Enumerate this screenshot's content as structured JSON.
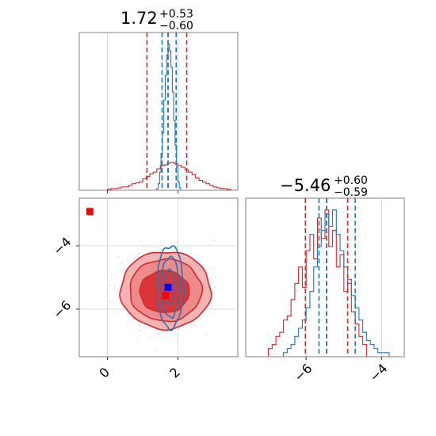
{
  "colors": {
    "red": "#d62728",
    "blue": "#1f77b4",
    "red_fill_light": "#f4b4b4",
    "red_fill_mid": "#ec8a8c",
    "red_fill_dark": "#db3538",
    "marker_blue": "#0000ff",
    "marker_red": "#ff0000"
  },
  "chart_data": [
    {
      "panel": "marginal-param-1",
      "type": "histogram",
      "title": {
        "value": "1.72",
        "upper": "+0.53",
        "lower": "−0.60"
      },
      "xlim": [
        -0.8,
        3.7
      ],
      "x_ticks": [
        0,
        2
      ],
      "quantiles": {
        "red": [
          1.12,
          1.72,
          2.25
        ],
        "blue": [
          1.55,
          1.72,
          1.95
        ]
      },
      "series": [
        {
          "name": "",
          "color": "red",
          "bin_edges": [
            0.0,
            0.1,
            0.2,
            0.3,
            0.4,
            0.5,
            0.6,
            0.7,
            0.8,
            0.9,
            1.0,
            1.1,
            1.2,
            1.3,
            1.4,
            1.5,
            1.6,
            1.7,
            1.8,
            1.9,
            2.0,
            2.1,
            2.2,
            2.3,
            2.4,
            2.5,
            2.6,
            2.7,
            2.8,
            2.9,
            3.0,
            3.1,
            3.2,
            3.3,
            3.4,
            3.5
          ],
          "counts": [
            1,
            2,
            2,
            3,
            4,
            4,
            6,
            8,
            9,
            10,
            14,
            17,
            20,
            22,
            26,
            30,
            31,
            33,
            34,
            32,
            30,
            28,
            25,
            22,
            19,
            15,
            12,
            10,
            8,
            6,
            4,
            3,
            2,
            2,
            1
          ]
        },
        {
          "name": "",
          "color": "blue",
          "bin_edges": [
            1.4,
            1.44,
            1.48,
            1.52,
            1.56,
            1.6,
            1.64,
            1.68,
            1.72,
            1.76,
            1.8,
            1.84,
            1.88,
            1.92,
            1.96,
            2.0,
            2.04,
            2.08
          ],
          "counts": [
            2,
            8,
            22,
            45,
            70,
            110,
            140,
            165,
            178,
            170,
            150,
            120,
            85,
            55,
            28,
            10,
            3
          ]
        }
      ]
    },
    {
      "panel": "joint-param-1-vs-param-2",
      "type": "contour",
      "xlim": [
        -0.8,
        3.7
      ],
      "ylim": [
        -7.5,
        -2.5
      ],
      "x_ticks": [
        0,
        2
      ],
      "y_ticks": [
        -4,
        -6
      ],
      "red_levels": [
        {
          "cx": 1.65,
          "cy": -5.4,
          "rx": 1.28,
          "ry": 1.22
        },
        {
          "cx": 1.65,
          "cy": -5.4,
          "rx": 1.02,
          "ry": 0.98
        },
        {
          "cx": 1.62,
          "cy": -5.45,
          "rx": 0.7,
          "ry": 0.66
        }
      ],
      "blue_levels": [
        {
          "cx": 1.78,
          "cy": -5.3,
          "rx": 0.38,
          "ry": 1.3
        },
        {
          "cx": 1.78,
          "cy": -5.3,
          "rx": 0.26,
          "ry": 0.95
        },
        {
          "cx": 1.76,
          "cy": -5.3,
          "rx": 0.14,
          "ry": 0.55
        }
      ],
      "markers": [
        {
          "x": 1.72,
          "y": -5.31,
          "color": "marker_blue"
        },
        {
          "x": 1.65,
          "y": -5.57,
          "color": "marker_red"
        },
        {
          "x": -0.5,
          "y": -2.92,
          "color": "marker_red"
        }
      ]
    },
    {
      "panel": "marginal-param-2",
      "type": "histogram",
      "title": {
        "value": "−5.46",
        "upper": "+0.60",
        "lower": "−0.59"
      },
      "xlim": [
        -7.6,
        -3.4
      ],
      "x_ticks": [
        -6,
        -4
      ],
      "quantiles": {
        "red": [
          -6.02,
          -5.46,
          -4.9
        ],
        "blue": [
          -5.66,
          -5.46,
          -4.7
        ]
      },
      "series": [
        {
          "name": "",
          "color": "red",
          "bin_edges": [
            -7.0,
            -6.9,
            -6.8,
            -6.7,
            -6.6,
            -6.5,
            -6.4,
            -6.3,
            -6.2,
            -6.1,
            -6.0,
            -5.9,
            -5.8,
            -5.7,
            -5.6,
            -5.5,
            -5.4,
            -5.3,
            -5.2,
            -5.1,
            -5.0,
            -4.9,
            -4.8,
            -4.7,
            -4.6,
            -4.5,
            -4.4
          ],
          "counts": [
            2,
            3,
            5,
            6,
            9,
            10,
            14,
            18,
            22,
            17,
            26,
            30,
            24,
            34,
            29,
            36,
            27,
            31,
            22,
            25,
            16,
            19,
            11,
            8,
            5,
            3
          ]
        },
        {
          "name": "",
          "color": "blue",
          "bin_edges": [
            -6.6,
            -6.5,
            -6.4,
            -6.3,
            -6.2,
            -6.1,
            -6.0,
            -5.9,
            -5.8,
            -5.7,
            -5.6,
            -5.5,
            -5.4,
            -5.3,
            -5.2,
            -5.1,
            -5.0,
            -4.9,
            -4.8,
            -4.7,
            -4.6,
            -4.5,
            -4.4,
            -4.3,
            -4.2,
            -4.1,
            -4.0,
            -3.9,
            -3.8
          ],
          "counts": [
            1,
            2,
            3,
            5,
            7,
            9,
            12,
            16,
            22,
            27,
            31,
            35,
            32,
            36,
            30,
            26,
            22,
            18,
            15,
            12,
            9,
            6,
            4,
            3,
            2,
            1,
            1,
            1
          ]
        }
      ]
    }
  ]
}
